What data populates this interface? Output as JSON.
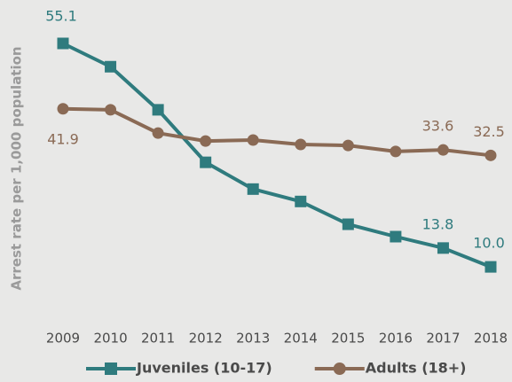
{
  "chart_data": {
    "type": "line",
    "y_label": "Arrest rate per 1,000 population",
    "categories": [
      "2009",
      "2010",
      "2011",
      "2012",
      "2013",
      "2014",
      "2015",
      "2016",
      "2017",
      "2018"
    ],
    "series": [
      {
        "name": "Juveniles (10-17)",
        "color": "#2f7b7e",
        "marker": "square",
        "values": [
          55.1,
          50.4,
          41.7,
          31.1,
          25.7,
          23.2,
          18.6,
          16.1,
          13.8,
          10.0
        ],
        "value_labels": [
          "55.1",
          null,
          null,
          null,
          null,
          null,
          null,
          null,
          "13.8",
          "10.0"
        ]
      },
      {
        "name": "Adults (18+)",
        "color": "#8a6a55",
        "marker": "circle",
        "values": [
          41.9,
          41.7,
          37.0,
          35.4,
          35.6,
          34.7,
          34.5,
          33.3,
          33.6,
          32.5
        ],
        "value_labels": [
          "41.9",
          null,
          null,
          null,
          null,
          null,
          null,
          null,
          "33.6",
          "32.5"
        ]
      }
    ],
    "ylim": [
      0,
      60
    ],
    "legend": "bottom"
  }
}
